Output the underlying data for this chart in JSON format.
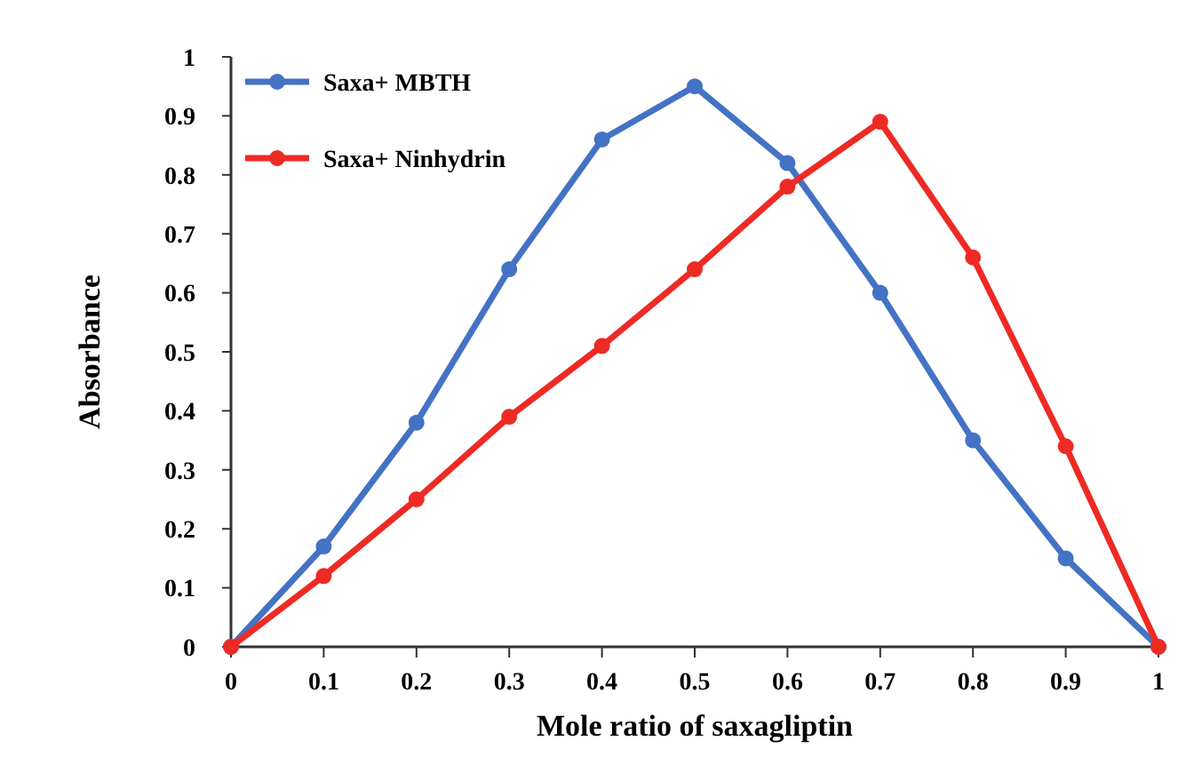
{
  "chart_data": {
    "type": "line",
    "xlabel": "Mole ratio of saxagliptin",
    "ylabel": "Absorbance",
    "x": [
      0,
      0.1,
      0.2,
      0.3,
      0.4,
      0.5,
      0.6,
      0.7,
      0.8,
      0.9,
      1
    ],
    "xlim": [
      0,
      1
    ],
    "xticks": [
      0,
      0.1,
      0.2,
      0.3,
      0.4,
      0.5,
      0.6,
      0.7,
      0.8,
      0.9,
      1
    ],
    "ylim": [
      0,
      1
    ],
    "yticks": [
      0,
      0.1,
      0.2,
      0.3,
      0.4,
      0.5,
      0.6,
      0.7,
      0.8,
      0.9,
      1
    ],
    "series": [
      {
        "name": "Saxa+ MBTH",
        "color": "#4472c4",
        "values": [
          0,
          0.17,
          0.38,
          0.64,
          0.86,
          0.95,
          0.82,
          0.6,
          0.35,
          0.15,
          0
        ]
      },
      {
        "name": "Saxa+ Ninhydrin",
        "color": "#ee2a24",
        "values": [
          0,
          0.12,
          0.25,
          0.39,
          0.51,
          0.64,
          0.78,
          0.89,
          0.66,
          0.34,
          0
        ]
      }
    ],
    "marker": "circle",
    "line_style": "solid",
    "grid": false,
    "legend": "top left"
  }
}
